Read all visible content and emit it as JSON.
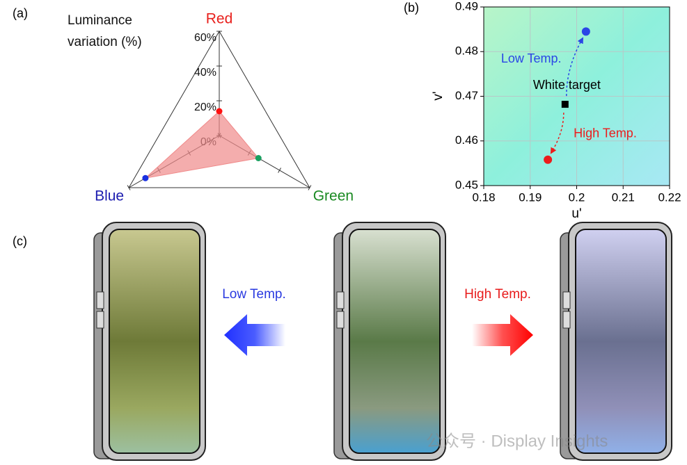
{
  "chart_data": [
    {
      "type": "radar",
      "title": "Luminance variation (%)",
      "categories": [
        "Red",
        "Green",
        "Blue"
      ],
      "category_colors": [
        "#e8201c",
        "#1a8a22",
        "#1d1db0"
      ],
      "values": [
        14,
        26,
        49
      ],
      "point_colors": [
        "#ff1010",
        "#1aa060",
        "#1a30e0"
      ],
      "color": "#f08a8a",
      "rlim": [
        0,
        60
      ],
      "rticks": [
        {
          "value": 0,
          "label": "0%"
        },
        {
          "value": 20,
          "label": "20%"
        },
        {
          "value": 40,
          "label": "40%"
        },
        {
          "value": 60,
          "label": "60%"
        }
      ]
    },
    {
      "type": "scatter",
      "xlabel": "u'",
      "ylabel": "v'",
      "xlim": [
        0.18,
        0.22
      ],
      "ylim": [
        0.45,
        0.49
      ],
      "xticks": [
        0.18,
        0.19,
        0.2,
        0.21,
        0.22
      ],
      "yticks": [
        0.45,
        0.46,
        0.47,
        0.48,
        0.49
      ],
      "grid": true,
      "series": [
        {
          "name": "Low Temp.",
          "color": "#2a46e6",
          "marker": "circle",
          "x": [
            0.202
          ],
          "y": [
            0.4845
          ]
        },
        {
          "name": "White target",
          "color": "#000000",
          "marker": "square",
          "x": [
            0.1975
          ],
          "y": [
            0.4682
          ]
        },
        {
          "name": "High Temp.",
          "color": "#ec1c1c",
          "marker": "circle",
          "x": [
            0.1938
          ],
          "y": [
            0.4558
          ]
        }
      ]
    }
  ],
  "figure": {
    "panel_labels": [
      "(a)",
      "(b)",
      "(c)"
    ],
    "cooling_label": "Low Temp.",
    "heating_label": "High Temp.",
    "watermark": "公众号 · Display Insights"
  }
}
